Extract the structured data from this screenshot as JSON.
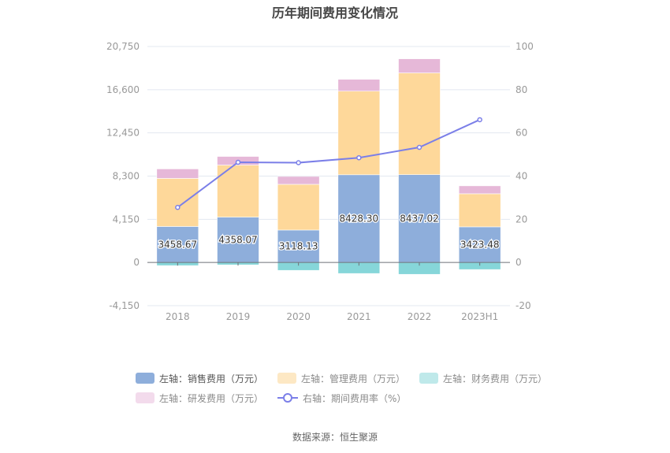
{
  "title": "历年期间费用变化情况",
  "source": "数据来源：恒生聚源",
  "chart_data": {
    "type": "bar",
    "stacked": true,
    "title": "历年期间费用变化情况",
    "categories": [
      "2018",
      "2019",
      "2020",
      "2021",
      "2022",
      "2023H1"
    ],
    "left_axis": {
      "ylim": [
        -4150,
        20750
      ],
      "ticks": [
        -4150,
        0,
        4150,
        8300,
        12450,
        16600,
        20750
      ],
      "tick_labels": [
        "-4,150",
        "0",
        "4,150",
        "8,300",
        "12,450",
        "16,600",
        "20,750"
      ]
    },
    "right_axis": {
      "ylim": [
        -20,
        100
      ],
      "ticks": [
        -20,
        0,
        20,
        40,
        60,
        80,
        100
      ],
      "tick_labels": [
        "-20",
        "0",
        "20",
        "40",
        "60",
        "80",
        "100"
      ]
    },
    "grid": true,
    "legend_position": "bottom",
    "series": [
      {
        "name": "左轴：销售费用（万元）",
        "axis": "left",
        "type": "bar",
        "color": "#8eaedb",
        "values": [
          3458.67,
          4358.07,
          3118.13,
          8428.3,
          8437.02,
          3423.48
        ],
        "labels": [
          "3458.67",
          "4358.07",
          "3118.13",
          "8428.30",
          "8437.02",
          "3423.48"
        ]
      },
      {
        "name": "左轴：管理费用（万元）",
        "axis": "left",
        "type": "bar",
        "color": "#fed89a",
        "legend_color": "#fde8c4",
        "values": [
          4620,
          5000,
          4390,
          8030,
          9770,
          3180
        ]
      },
      {
        "name": "左轴：财务费用（万元）",
        "axis": "left",
        "type": "bar",
        "color": "#86d6d9",
        "legend_color": "#bfe9ea",
        "values": [
          -300,
          -230,
          -760,
          -1060,
          -1140,
          -680
        ]
      },
      {
        "name": "左轴：研发费用（万元）",
        "axis": "left",
        "type": "bar",
        "color": "#e6b8d8",
        "legend_color": "#f3dbec",
        "values": [
          910,
          830,
          760,
          1140,
          1360,
          760
        ]
      },
      {
        "name": "右轴：期间费用率（%）",
        "axis": "right",
        "type": "line",
        "color": "#7b7fe8",
        "values": [
          25.5,
          46.4,
          46.2,
          48.5,
          53.3,
          66.1
        ]
      }
    ]
  }
}
